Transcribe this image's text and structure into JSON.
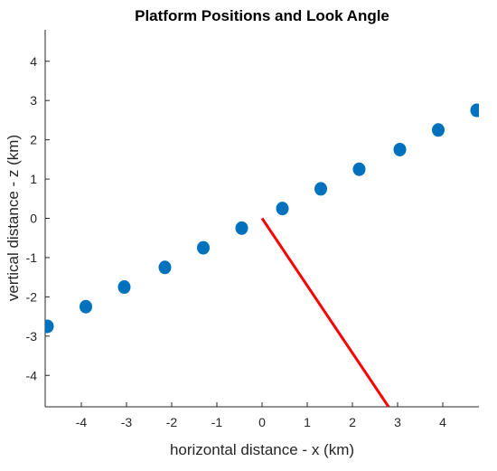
{
  "chart_data": {
    "type": "scatter",
    "title": "Platform Positions and Look Angle",
    "xlabel": "horizontal distance - x (km)",
    "ylabel": "vertical distance - z (km)",
    "xlim": [
      -4.8,
      4.8
    ],
    "ylim": [
      -4.8,
      4.8
    ],
    "x_ticks": [
      -4,
      -3,
      -2,
      -1,
      0,
      1,
      2,
      3,
      4
    ],
    "y_ticks": [
      -4,
      -3,
      -2,
      -1,
      0,
      1,
      2,
      3,
      4
    ],
    "x_tick_labels": [
      "-4",
      "-3",
      "-2",
      "-1",
      "0",
      "1",
      "2",
      "3",
      "4"
    ],
    "y_tick_labels": [
      "-4",
      "-3",
      "-2",
      "-1",
      "0",
      "1",
      "2",
      "3",
      "4"
    ],
    "grid": false,
    "series": [
      {
        "type": "scatter",
        "color": "#0072BD",
        "x": [
          -4.75,
          -3.9,
          -3.05,
          -2.15,
          -1.3,
          -0.45,
          0.45,
          1.3,
          2.15,
          3.05,
          3.9,
          4.75
        ],
        "y": [
          -2.75,
          -2.25,
          -1.75,
          -1.25,
          -0.75,
          -0.25,
          0.25,
          0.75,
          1.25,
          1.75,
          2.25,
          2.75
        ]
      },
      {
        "type": "line",
        "color": "#FF0000",
        "x": [
          0,
          2.8
        ],
        "y": [
          0,
          -4.8
        ]
      }
    ]
  }
}
